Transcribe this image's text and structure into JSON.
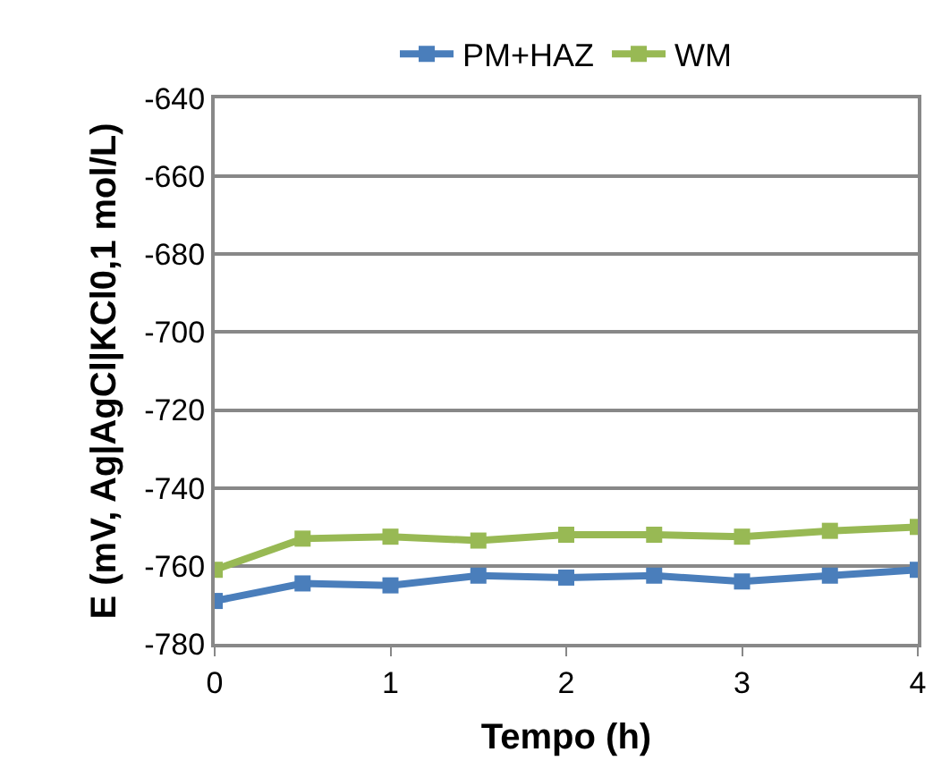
{
  "chart_data": {
    "type": "line",
    "xlabel": "Tempo (h)",
    "ylabel": "E (mV, Ag|AgCl|KCl0,1 mol/L)",
    "x": [
      0,
      0.5,
      1,
      1.5,
      2,
      2.5,
      3,
      3.5,
      4
    ],
    "series": [
      {
        "name": "PM+HAZ",
        "color": "#4a7ebb",
        "values": [
          -769,
          -764.5,
          -765,
          -762.5,
          -763,
          -762.5,
          -764,
          -762.5,
          -761
        ]
      },
      {
        "name": "WM",
        "color": "#98b954",
        "values": [
          -761,
          -753,
          -752.5,
          -753.5,
          -752,
          -752,
          -752.5,
          -751,
          -750
        ]
      }
    ],
    "xlim": [
      0,
      4
    ],
    "xticks": [
      0,
      1,
      2,
      3,
      4
    ],
    "ylim": [
      -780,
      -640
    ],
    "yticks": [
      -780,
      -760,
      -740,
      -720,
      -700,
      -680,
      -660,
      -640
    ],
    "grid": "y",
    "legend": "top",
    "marker": "square",
    "line_style": "solid"
  }
}
